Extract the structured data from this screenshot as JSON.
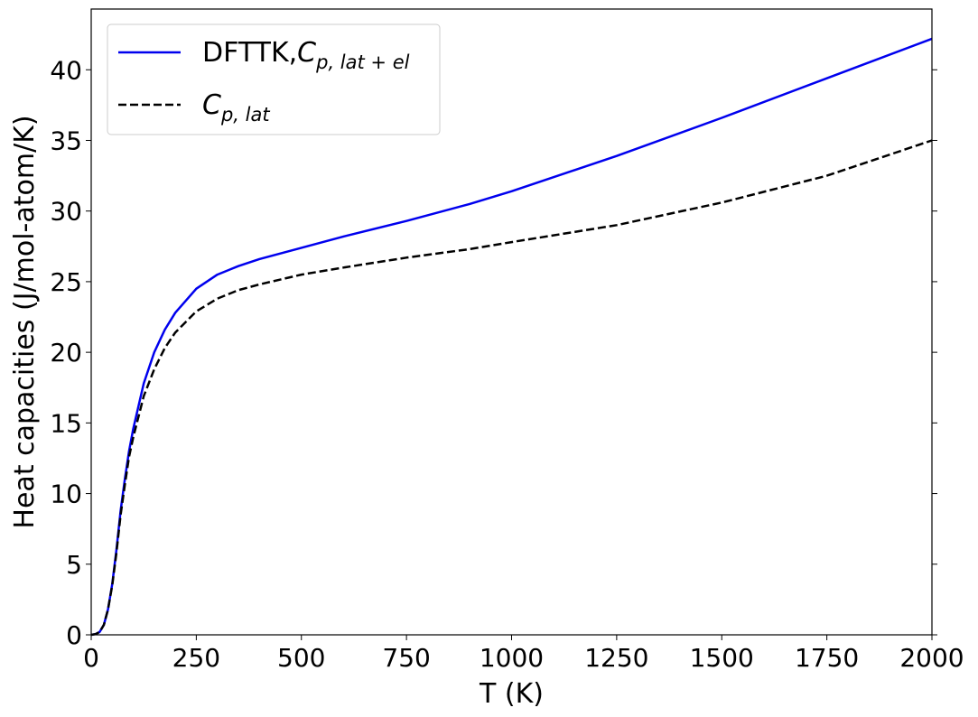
{
  "chart_data": {
    "type": "line",
    "xlabel": "T (K)",
    "ylabel": "Heat capacities (J/mol-atom/K)",
    "xlim": [
      0,
      2000
    ],
    "ylim": [
      0,
      44.3
    ],
    "xticks": [
      0,
      250,
      500,
      750,
      1000,
      1250,
      1500,
      1750,
      2000
    ],
    "yticks": [
      0,
      5,
      10,
      15,
      20,
      25,
      30,
      35,
      40
    ],
    "grid": false,
    "legend_position": "top-left",
    "series": [
      {
        "name_main": "DFTTK,",
        "name_italic": "C",
        "name_sub": "p, lat + el",
        "color": "#0000ee",
        "style": "solid",
        "x": [
          0,
          10,
          20,
          30,
          40,
          50,
          60,
          70,
          80,
          90,
          100,
          125,
          150,
          175,
          200,
          250,
          300,
          350,
          400,
          500,
          600,
          750,
          900,
          1000,
          1250,
          1500,
          1750,
          2000
        ],
        "y": [
          0,
          0.05,
          0.2,
          0.7,
          1.8,
          3.6,
          6.0,
          8.8,
          11.0,
          13.0,
          14.6,
          17.8,
          20.0,
          21.6,
          22.8,
          24.5,
          25.5,
          26.1,
          26.6,
          27.4,
          28.2,
          29.3,
          30.5,
          31.4,
          33.9,
          36.6,
          39.4,
          42.2
        ]
      },
      {
        "name_main": "",
        "name_italic": "C",
        "name_sub": "p, lat",
        "color": "#000000",
        "style": "dashed",
        "x": [
          0,
          10,
          20,
          30,
          40,
          50,
          60,
          70,
          80,
          90,
          100,
          125,
          150,
          175,
          200,
          250,
          300,
          350,
          400,
          500,
          600,
          750,
          900,
          1000,
          1250,
          1500,
          1750,
          2000
        ],
        "y": [
          0,
          0.05,
          0.2,
          0.7,
          1.8,
          3.5,
          5.8,
          8.5,
          10.6,
          12.6,
          14.0,
          16.9,
          18.8,
          20.3,
          21.4,
          22.9,
          23.8,
          24.4,
          24.8,
          25.5,
          26.0,
          26.7,
          27.3,
          27.8,
          29.0,
          30.6,
          32.5,
          35.0
        ]
      }
    ]
  }
}
